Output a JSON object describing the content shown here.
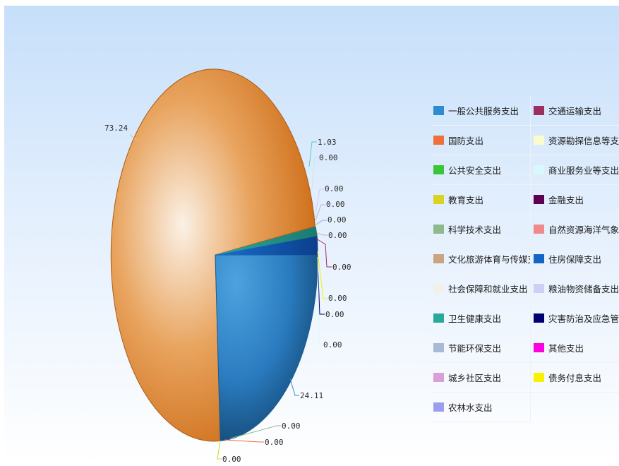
{
  "chart_data": {
    "type": "pie",
    "title": "",
    "series": [
      {
        "name": "一般公共服务支出",
        "value": 24.11,
        "color": "#2e8bd0"
      },
      {
        "name": "国防支出",
        "value": 0.0,
        "color": "#f0703c"
      },
      {
        "name": "公共安全支出",
        "value": 0.0,
        "color": "#38c636"
      },
      {
        "name": "教育支出",
        "value": 0.0,
        "color": "#d8d420"
      },
      {
        "name": "科学技术支出",
        "value": 0.0,
        "color": "#8fb88c"
      },
      {
        "name": "文化旅游体育与传媒支出",
        "value": 0.0,
        "color": "#c8a57f"
      },
      {
        "name": "社会保障和就业支出",
        "value": 73.24,
        "color": "#e07a20"
      },
      {
        "name": "卫生健康支出",
        "value": 1.03,
        "color": "#2aa99b"
      },
      {
        "name": "节能环保支出",
        "value": 0.0,
        "color": "#a9bbd4"
      },
      {
        "name": "城乡社区支出",
        "value": 0.0,
        "color": "#d8a0d6"
      },
      {
        "name": "农林水支出",
        "value": 0.0,
        "color": "#9d9df0"
      },
      {
        "name": "交通运输支出",
        "value": 0.0,
        "color": "#9c3060"
      },
      {
        "name": "资源勘探信息等支出",
        "value": 0.0,
        "color": "#fbfbd0"
      },
      {
        "name": "商业服务业等支出",
        "value": 0.0,
        "color": "#d8f8fc"
      },
      {
        "name": "金融支出",
        "value": 0.0,
        "color": "#5c0051"
      },
      {
        "name": "自然资源海洋气象等支出",
        "value": 0.0,
        "color": "#f08a8a"
      },
      {
        "name": "住房保障支出",
        "value": 1.62,
        "color": "#1565c4"
      },
      {
        "name": "粮油物资储备支出",
        "value": 0.0,
        "color": "#cfcff5"
      },
      {
        "name": "灾害防治及应急管理支出",
        "value": 0.0,
        "color": "#000070"
      },
      {
        "name": "其他支出",
        "value": 0.0,
        "color": "#ff00e0"
      },
      {
        "name": "债务付息支出",
        "value": 0.0,
        "color": "#f6f200"
      }
    ],
    "value_labels": [
      "73.24",
      "1.03",
      "0.00",
      "0.00",
      "0.00",
      "0.00",
      "0.00",
      "0.00",
      "0.00",
      "0.00",
      "0.00",
      "24.11",
      "0.00",
      "0.00",
      "0.00"
    ],
    "legend_position": "right"
  }
}
